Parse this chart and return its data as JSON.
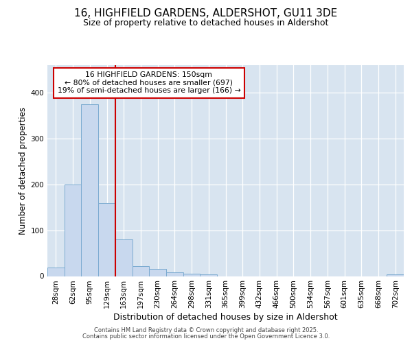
{
  "title": "16, HIGHFIELD GARDENS, ALDERSHOT, GU11 3DE",
  "subtitle": "Size of property relative to detached houses in Aldershot",
  "xlabel": "Distribution of detached houses by size in Aldershot",
  "ylabel": "Number of detached properties",
  "categories": [
    "28sqm",
    "62sqm",
    "95sqm",
    "129sqm",
    "163sqm",
    "197sqm",
    "230sqm",
    "264sqm",
    "298sqm",
    "331sqm",
    "365sqm",
    "399sqm",
    "432sqm",
    "466sqm",
    "500sqm",
    "534sqm",
    "567sqm",
    "601sqm",
    "635sqm",
    "668sqm",
    "702sqm"
  ],
  "values": [
    18,
    200,
    375,
    160,
    80,
    22,
    15,
    8,
    5,
    4,
    0,
    0,
    0,
    0,
    0,
    0,
    0,
    0,
    0,
    0,
    3
  ],
  "bar_color": "#c8d8ee",
  "bar_edge_color": "#7aaad0",
  "vline_x_index": 3.5,
  "vline_color": "#cc0000",
  "annotation_line1": "16 HIGHFIELD GARDENS: 150sqm",
  "annotation_line2": "← 80% of detached houses are smaller (697)",
  "annotation_line3": "19% of semi-detached houses are larger (166) →",
  "annotation_box_color": "#cc0000",
  "annotation_bg": "#ffffff",
  "footer1": "Contains HM Land Registry data © Crown copyright and database right 2025.",
  "footer2": "Contains public sector information licensed under the Open Government Licence 3.0.",
  "ylim": [
    0,
    460
  ],
  "figure_bg": "#ffffff",
  "plot_bg": "#d8e4f0",
  "title_fontsize": 11,
  "subtitle_fontsize": 9,
  "tick_fontsize": 7.5,
  "ylabel_fontsize": 8.5,
  "xlabel_fontsize": 9
}
